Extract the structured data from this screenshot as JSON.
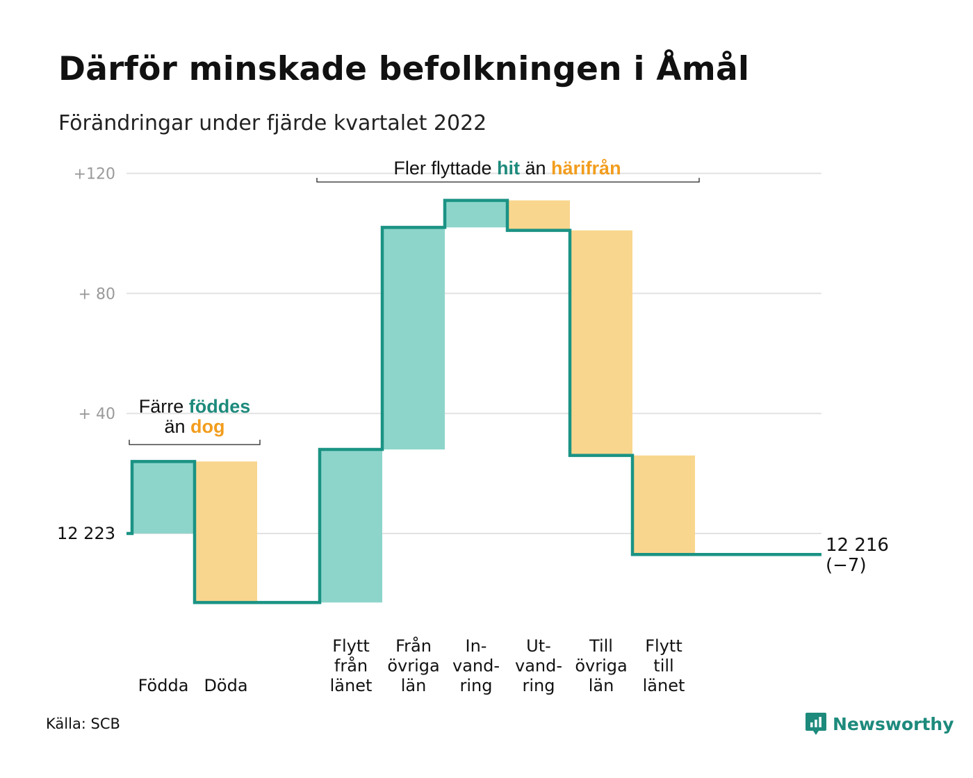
{
  "title": "Därför minskade befolkningen i Åmål",
  "subtitle": "Förändringar under fjärde kvartalet 2022",
  "source": "Källa: SCB",
  "brand": "Newsworthy",
  "colors": {
    "positive": "#8dd5cb",
    "negative": "#f9d68d",
    "line": "#1a9384",
    "teal_text": "#1d8a7c",
    "orange_text": "#f29d1e",
    "grid": "#e2e2e2",
    "axis_text": "#9a9a9a"
  },
  "chart_data": {
    "type": "waterfall",
    "start_value": 12223,
    "start_label": "12 223",
    "end_value": 12216,
    "end_label": "12 216",
    "end_change_label": "(−7)",
    "y_ticks": [
      {
        "value": 40,
        "label": "+ 40"
      },
      {
        "value": 80,
        "label": "+ 80"
      },
      {
        "value": 120,
        "label": "+120"
      }
    ],
    "ylim": [
      -30,
      124
    ],
    "steps": [
      {
        "label": [
          "Födda"
        ],
        "change": 24,
        "kind": "in"
      },
      {
        "label": [
          "Döda"
        ],
        "change": -47,
        "kind": "out"
      },
      {
        "label": [],
        "change": 0,
        "kind": "gap"
      },
      {
        "label": [
          "Flytt",
          "från",
          "länet"
        ],
        "change": 51,
        "kind": "in"
      },
      {
        "label": [
          "Från",
          "övriga",
          "län"
        ],
        "change": 74,
        "kind": "in"
      },
      {
        "label": [
          "In-",
          "vand-",
          "ring"
        ],
        "change": 9,
        "kind": "in"
      },
      {
        "label": [
          "Ut-",
          "vand-",
          "ring"
        ],
        "change": -10,
        "kind": "out"
      },
      {
        "label": [
          "Till",
          "övriga",
          "län"
        ],
        "change": -75,
        "kind": "out"
      },
      {
        "label": [
          "Flytt",
          "till",
          "länet"
        ],
        "change": -33,
        "kind": "out"
      },
      {
        "label": [],
        "change": 0,
        "kind": "gap"
      }
    ],
    "annotations": [
      {
        "parts": [
          {
            "text": "Färre ",
            "style": "plain"
          },
          {
            "text": "föddes",
            "style": "teal"
          }
        ],
        "parts2": [
          {
            "text": "än ",
            "style": "plain"
          },
          {
            "text": "dog",
            "style": "orange"
          }
        ]
      },
      {
        "parts": [
          {
            "text": "Fler flyttade ",
            "style": "plain"
          },
          {
            "text": "hit",
            "style": "teal"
          },
          {
            "text": " än ",
            "style": "plain"
          },
          {
            "text": "härifrån",
            "style": "orange"
          }
        ]
      }
    ]
  }
}
